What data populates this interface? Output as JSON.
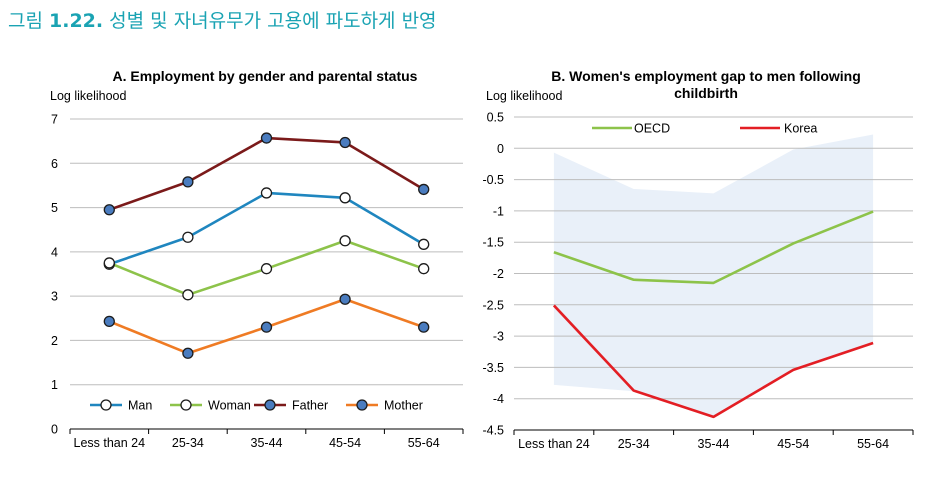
{
  "figure": {
    "label": "그림",
    "number": "1.22.",
    "title": "성별 및 자녀유무가 고용에 파도하게 반영"
  },
  "colors": {
    "title": "#1aa3b3",
    "man": "#1f86bf",
    "woman": "#8dc34a",
    "father": "#7b1a1a",
    "mother": "#ef7b24",
    "oecd": "#8dc34a",
    "korea": "#e31e24",
    "band": "#e9f0f9",
    "gridline": "#bdbdbd",
    "marker_fill": "#4a7cbf",
    "marker_stroke": "#1c1c1c"
  },
  "chart_data": [
    {
      "type": "line",
      "title": "A. Employment by gender and parental status",
      "ylabel": "Log likelihood",
      "xlabel": "",
      "categories": [
        "Less than 24",
        "25-34",
        "35-44",
        "45-54",
        "55-64"
      ],
      "ylim": [
        0,
        7
      ],
      "yticks": [
        0,
        1,
        2,
        3,
        4,
        5,
        6,
        7
      ],
      "ytick_labels": [
        "0",
        "1",
        "2",
        "3",
        "4",
        "5",
        "6",
        "7"
      ],
      "grid": true,
      "legend_position": "bottom",
      "series": [
        {
          "name": "Man",
          "key": "man",
          "marker": "open",
          "values": [
            3.72,
            4.33,
            5.33,
            5.22,
            4.17
          ]
        },
        {
          "name": "Woman",
          "key": "woman",
          "marker": "open",
          "values": [
            3.75,
            3.03,
            3.62,
            4.25,
            3.62
          ]
        },
        {
          "name": "Father",
          "key": "father",
          "marker": "filled",
          "values": [
            4.95,
            5.58,
            6.57,
            6.47,
            5.41
          ]
        },
        {
          "name": "Mother",
          "key": "mother",
          "marker": "filled",
          "values": [
            2.43,
            1.71,
            2.3,
            2.93,
            2.3
          ]
        }
      ]
    },
    {
      "type": "line",
      "title": "B. Women's employment gap to men following childbirth",
      "title_lines": [
        "B. Women's employment gap to men following",
        "childbirth"
      ],
      "ylabel": "Log likelihood",
      "xlabel": "",
      "categories": [
        "Less than 24",
        "25-34",
        "35-44",
        "45-54",
        "55-64"
      ],
      "ylim": [
        -4.5,
        0.5
      ],
      "yticks": [
        0.5,
        0,
        -0.5,
        -1,
        -1.5,
        -2,
        -2.5,
        -3,
        -3.5,
        -4,
        -4.5
      ],
      "ytick_labels": [
        "0.5",
        "0",
        "-0.5",
        "-1",
        "-1.5",
        "-2",
        "-2.5",
        "-3",
        "-3.5",
        "-4",
        "-4.5"
      ],
      "grid": true,
      "legend_position": "top",
      "band": {
        "upper": [
          -0.07,
          -0.65,
          -0.72,
          -0.02,
          0.22
        ],
        "lower": [
          -3.78,
          -3.88,
          -4.28,
          -3.53,
          -3.1
        ]
      },
      "series": [
        {
          "name": "OECD",
          "key": "oecd",
          "values": [
            -1.66,
            -2.1,
            -2.15,
            -1.52,
            -1.01
          ]
        },
        {
          "name": "Korea",
          "key": "korea",
          "values": [
            -2.51,
            -3.87,
            -4.29,
            -3.54,
            -3.11
          ]
        }
      ]
    }
  ]
}
